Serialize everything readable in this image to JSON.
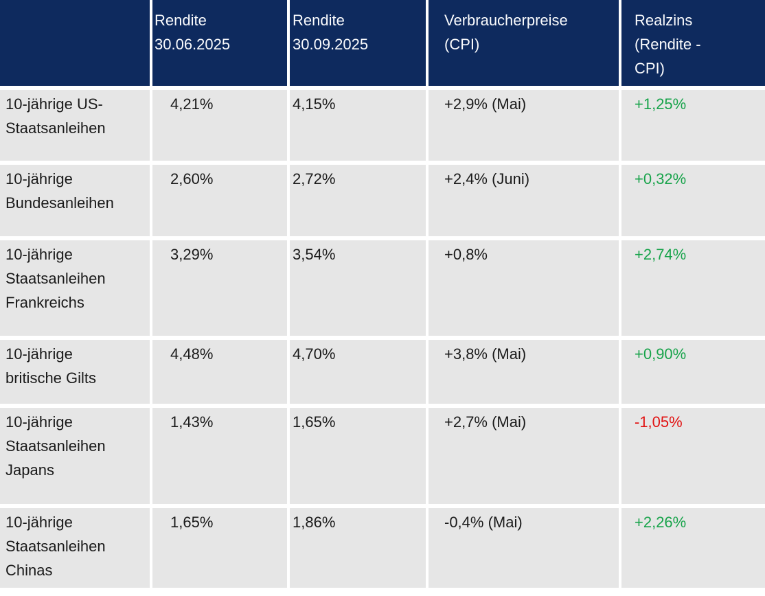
{
  "colors": {
    "header_bg": "#0e2a5e",
    "header_text": "#fafbfd",
    "row_bg": "#e6e6e6",
    "body_text": "#1a1a1a",
    "positive": "#17a34a",
    "negative": "#e11212"
  },
  "table": {
    "header": [
      "",
      "Rendite\n30.06.2025",
      "Rendite\n30.09.2025",
      "Verbraucherpreise\n(CPI)",
      "Realzins\n(Rendite -\nCPI)"
    ],
    "rows": [
      {
        "label": "10-jährige US-\nStaatsanleihen",
        "rendite_jun": "4,21%",
        "rendite_sep": "4,15%",
        "cpi": "+2,9% (Mai)",
        "realzins": "+1,25%"
      },
      {
        "label": "10-jährige\nBundesanleihen",
        "rendite_jun": "2,60%",
        "rendite_sep": "2,72%",
        "cpi": "+2,4% (Juni)",
        "realzins": "+0,32%"
      },
      {
        "label": "10-jährige\nStaatsanleihen\nFrankreichs",
        "rendite_jun": "3,29%",
        "rendite_sep": "3,54%",
        "cpi": "+0,8%",
        "realzins": "+2,74%"
      },
      {
        "label": "10-jährige\nbritische Gilts",
        "rendite_jun": "4,48%",
        "rendite_sep": "4,70%",
        "cpi": "+3,8% (Mai)",
        "realzins": "+0,90%"
      },
      {
        "label": "10-jährige\nStaatsanleihen\nJapans",
        "rendite_jun": "1,43%",
        "rendite_sep": "1,65%",
        "cpi": "+2,7% (Mai)",
        "realzins": "-1,05%"
      },
      {
        "label": "10-jährige\nStaatsanleihen\nChinas",
        "rendite_jun": "1,65%",
        "rendite_sep": "1,86%",
        "cpi": "-0,4% (Mai)",
        "realzins": "+2,26%"
      }
    ]
  },
  "chart_data": {
    "type": "table",
    "title": "",
    "categories": [
      "10-jährige US-Staatsanleihen",
      "10-jährige Bundesanleihen",
      "10-jährige Staatsanleihen Frankreichs",
      "10-jährige britische Gilts",
      "10-jährige Staatsanleihen Japans",
      "10-jährige Staatsanleihen Chinas"
    ],
    "series": [
      {
        "name": "Rendite 30.06.2025",
        "values": [
          4.21,
          2.6,
          3.29,
          4.48,
          1.43,
          1.65
        ],
        "unit": "%"
      },
      {
        "name": "Rendite 30.09.2025",
        "values": [
          4.15,
          2.72,
          3.54,
          4.7,
          1.65,
          1.86
        ],
        "unit": "%"
      },
      {
        "name": "Verbraucherpreise (CPI)",
        "values": [
          2.9,
          2.4,
          0.8,
          3.8,
          2.7,
          -0.4
        ],
        "unit": "%",
        "labels": [
          "+2,9% (Mai)",
          "+2,4% (Juni)",
          "+0,8%",
          "+3,8% (Mai)",
          "+2,7% (Mai)",
          "-0,4% (Mai)"
        ]
      },
      {
        "name": "Realzins (Rendite - CPI)",
        "values": [
          1.25,
          0.32,
          2.74,
          0.9,
          -1.05,
          2.26
        ],
        "unit": "%",
        "labels": [
          "+1,25%",
          "+0,32%",
          "+2,74%",
          "+0,90%",
          "-1,05%",
          "+2,26%"
        ]
      }
    ]
  }
}
